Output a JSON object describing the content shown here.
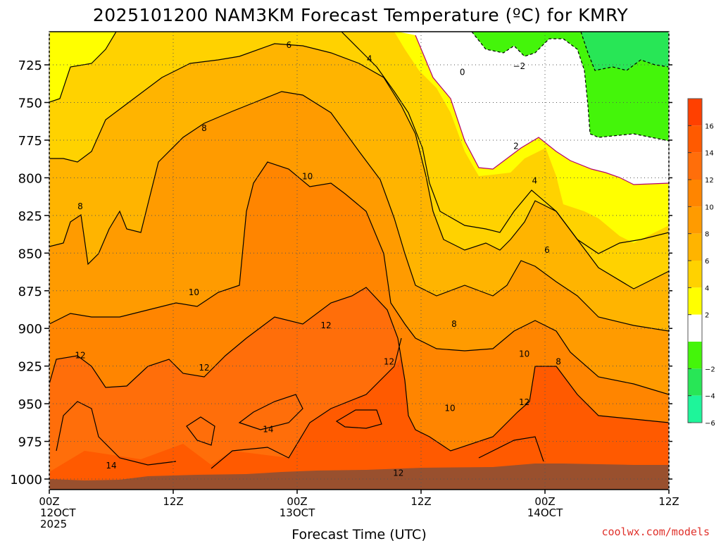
{
  "chart_data": {
    "type": "heatmap",
    "title": "2025101200 NAM3KM Forecast Temperature (ºC) for KMRY",
    "xlabel": "Forecast Time (UTC)",
    "ylabel": "",
    "credit": "coolwx.com/models",
    "y_ticks": [
      "725",
      "750",
      "775",
      "800",
      "825",
      "850",
      "875",
      "900",
      "925",
      "950",
      "975",
      "1000"
    ],
    "y_values": [
      725,
      750,
      775,
      800,
      825,
      850,
      875,
      900,
      925,
      950,
      975,
      1000
    ],
    "y_range_hpa": [
      703,
      1007
    ],
    "x_ticks": [
      {
        "hour": 0,
        "lines": [
          "00Z",
          "12OCT",
          "2025"
        ]
      },
      {
        "hour": 12,
        "lines": [
          "12Z"
        ]
      },
      {
        "hour": 24,
        "lines": [
          "00Z",
          "13OCT"
        ]
      },
      {
        "hour": 36,
        "lines": [
          "12Z"
        ]
      },
      {
        "hour": 48,
        "lines": [
          "00Z",
          "14OCT"
        ]
      },
      {
        "hour": 60,
        "lines": [
          "12Z"
        ]
      }
    ],
    "x_range_hours": [
      0,
      60
    ],
    "colorbar": {
      "ticks": [
        "16",
        "14",
        "12",
        "10",
        "8",
        "6",
        "4",
        "2",
        "−2",
        "−4",
        "−6"
      ],
      "bins": [
        {
          "range": [
            16,
            18
          ],
          "color": "#ff4000"
        },
        {
          "range": [
            14,
            16
          ],
          "color": "#ff5a00"
        },
        {
          "range": [
            12,
            14
          ],
          "color": "#ff6e0a"
        },
        {
          "range": [
            10,
            12
          ],
          "color": "#ff8500"
        },
        {
          "range": [
            8,
            10
          ],
          "color": "#ff9b00"
        },
        {
          "range": [
            6,
            8
          ],
          "color": "#ffb400"
        },
        {
          "range": [
            4,
            6
          ],
          "color": "#ffd200"
        },
        {
          "range": [
            2,
            4
          ],
          "color": "#ffff00"
        },
        {
          "range": [
            -2,
            2
          ],
          "color": "#ffffff"
        },
        {
          "range": [
            -4,
            -2
          ],
          "color": "#44f50a"
        },
        {
          "range": [
            -6,
            -4
          ],
          "color": "#28e656"
        },
        {
          "range": [
            -8,
            -6
          ],
          "color": "#1ef59a"
        }
      ]
    },
    "contour_labels": [
      {
        "text": "6",
        "hour": 23.2,
        "hpa": 712
      },
      {
        "text": "4",
        "hour": 31.0,
        "hpa": 721
      },
      {
        "text": "0",
        "hour": 40.0,
        "hpa": 730
      },
      {
        "text": "−2",
        "hour": 45.5,
        "hpa": 726
      },
      {
        "text": "8",
        "hour": 15.0,
        "hpa": 767
      },
      {
        "text": "2",
        "hour": 45.2,
        "hpa": 779
      },
      {
        "text": "10",
        "hour": 25.0,
        "hpa": 799
      },
      {
        "text": "4",
        "hour": 47.0,
        "hpa": 802
      },
      {
        "text": "8",
        "hour": 3.0,
        "hpa": 819
      },
      {
        "text": "6",
        "hour": 48.2,
        "hpa": 848
      },
      {
        "text": "10",
        "hour": 14.0,
        "hpa": 876
      },
      {
        "text": "12",
        "hour": 26.8,
        "hpa": 898
      },
      {
        "text": "8",
        "hour": 39.2,
        "hpa": 897
      },
      {
        "text": "12",
        "hour": 3.0,
        "hpa": 918
      },
      {
        "text": "12",
        "hour": 15.0,
        "hpa": 926
      },
      {
        "text": "12",
        "hour": 32.9,
        "hpa": 922
      },
      {
        "text": "10",
        "hour": 46.0,
        "hpa": 917
      },
      {
        "text": "8",
        "hour": 49.3,
        "hpa": 922
      },
      {
        "text": "10",
        "hour": 38.8,
        "hpa": 953
      },
      {
        "text": "12",
        "hour": 46.0,
        "hpa": 949
      },
      {
        "text": "14",
        "hour": 21.2,
        "hpa": 967
      },
      {
        "text": "14",
        "hour": 6.0,
        "hpa": 991
      },
      {
        "text": "12",
        "hour": 33.8,
        "hpa": 996
      }
    ]
  }
}
